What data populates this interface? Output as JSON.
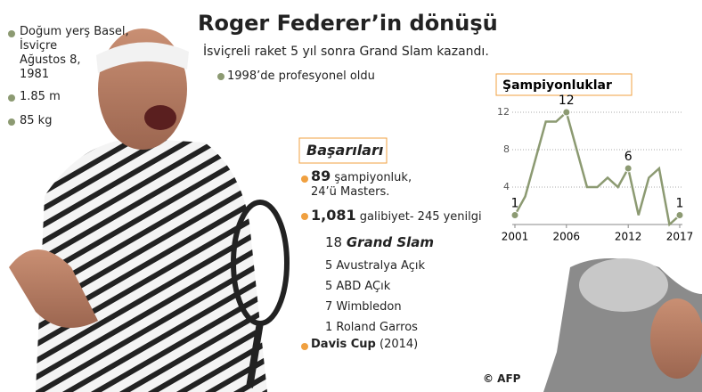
{
  "title": "Roger Federer’in dönüşü",
  "subtitle": "İsviçreli raket 5 yıl sonra Grand Slam kazandı.",
  "pro": "1998’de profesyonel oldu",
  "bio": [
    {
      "lines": [
        "Doğum yerş Basel,",
        "İsviçre",
        "Ağustos 8,",
        "1981"
      ]
    },
    {
      "lines": [
        "1.85 m"
      ]
    },
    {
      "lines": [
        "85 kg"
      ]
    }
  ],
  "achievements": {
    "heading": "Başarıları",
    "titles": {
      "number": "89",
      "text": "şampiyonluk,",
      "text2": "24’ü Masters."
    },
    "wins": {
      "number": "1,081",
      "text": "galibiyet- 245 yenilgi"
    },
    "slams": {
      "number": "18",
      "text": "Grand Slam",
      "list": [
        "5 Avustralya Açık",
        "5 ABD AÇık",
        "7 Wimbledon",
        "1 Roland Garros"
      ]
    },
    "davis": {
      "name": "Davis Cup",
      "year": "(2014)"
    }
  },
  "credit": "© AFP",
  "chart_data": {
    "type": "line",
    "title": "Şampiyonluklar",
    "x": [
      2001,
      2002,
      2003,
      2004,
      2005,
      2006,
      2007,
      2008,
      2009,
      2010,
      2011,
      2012,
      2013,
      2014,
      2015,
      2016,
      2017
    ],
    "values": [
      1,
      3,
      7,
      11,
      11,
      12,
      8,
      4,
      4,
      5,
      4,
      6,
      1,
      5,
      6,
      0,
      1
    ],
    "value_labels": [
      1,
      null,
      null,
      null,
      null,
      12,
      null,
      null,
      null,
      null,
      null,
      6,
      null,
      null,
      null,
      null,
      1
    ],
    "color": "#8c9a72",
    "xlim": [
      2001,
      2017
    ],
    "xticks": [
      2001,
      2006,
      2012,
      2017
    ],
    "ylim": [
      0,
      12
    ],
    "yticks": [
      4,
      8,
      12
    ],
    "grid": true
  }
}
